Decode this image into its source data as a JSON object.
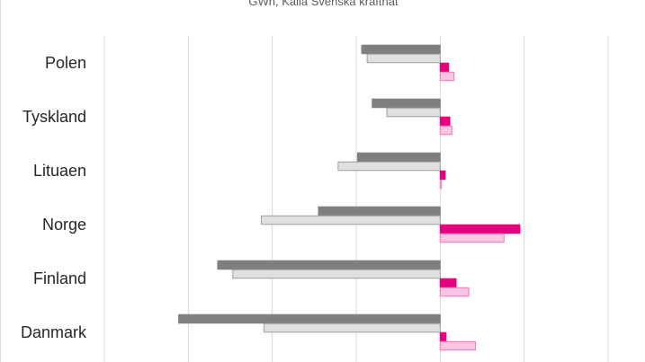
{
  "chart_data": {
    "type": "bar",
    "orientation": "horizontal",
    "subtitle": "GWh, Källa Svenska kraftnät",
    "categories": [
      "Polen",
      "Tyskland",
      "Lituaen",
      "Norge",
      "Finland",
      "Danmark"
    ],
    "series": [
      {
        "values": [
          -1870,
          -1620,
          -1970,
          -2900,
          -5300,
          -6230
        ],
        "color": "#7f7f7f",
        "stroke": "#7f7f7f"
      },
      {
        "values": [
          -1740,
          -1270,
          -2430,
          -4260,
          -4940,
          -4200
        ],
        "color": "#e0e0e0",
        "stroke": "#9e9e9e"
      },
      {
        "values": [
          200,
          230,
          120,
          1900,
          380,
          140
        ],
        "color": "#e6007e",
        "stroke": "#e6007e"
      },
      {
        "values": [
          330,
          280,
          30,
          1520,
          680,
          840
        ],
        "color": "#f9c6e3",
        "stroke": "#f277b9"
      }
    ],
    "xlim": [
      -8000,
      4000
    ],
    "grid": true,
    "legend": "none"
  }
}
